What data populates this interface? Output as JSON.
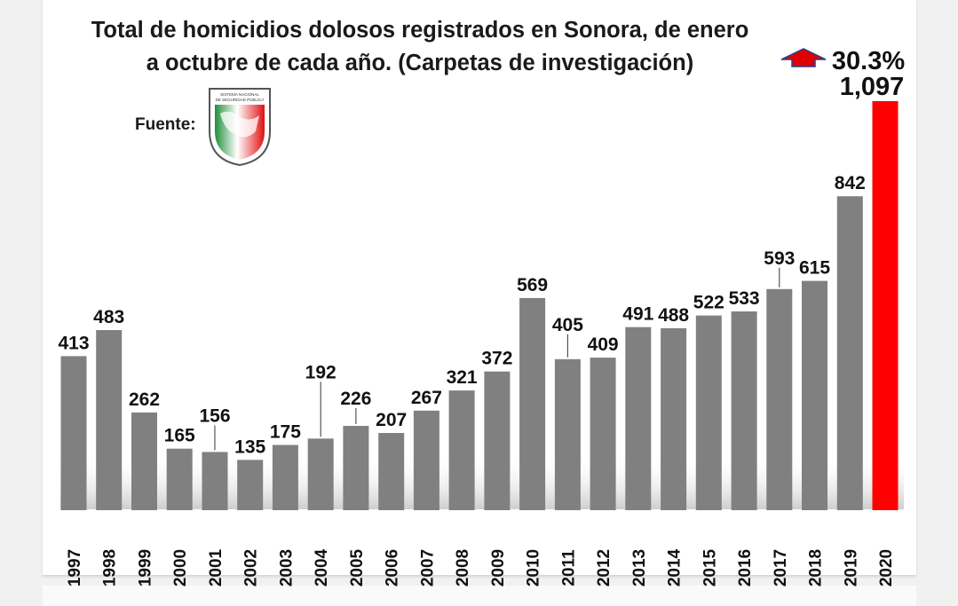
{
  "chart_data": {
    "type": "bar",
    "title_line1": "Total de homicidios dolosos registrados en Sonora, de enero",
    "title_line2": "a octubre de cada año. (Carpetas de investigación)",
    "source_label": "Fuente:",
    "seal_text_line1": "SISTEMA NACIONAL",
    "seal_text_line2": "DE SEGURIDAD PÚBLICA",
    "change_label": "30.3%",
    "categories": [
      "1997",
      "1998",
      "1999",
      "2000",
      "2001",
      "2002",
      "2003",
      "2004",
      "2005",
      "2006",
      "2007",
      "2008",
      "2009",
      "2010",
      "2011",
      "2012",
      "2013",
      "2014",
      "2015",
      "2016",
      "2017",
      "2018",
      "2019",
      "2020"
    ],
    "values": [
      413,
      483,
      262,
      165,
      156,
      135,
      175,
      192,
      226,
      207,
      267,
      321,
      372,
      569,
      405,
      409,
      491,
      488,
      522,
      533,
      593,
      615,
      842,
      1097
    ],
    "value_labels": [
      "413",
      "483",
      "262",
      "165",
      "156",
      "135",
      "175",
      "192",
      "226",
      "207",
      "267",
      "321",
      "372",
      "569",
      "405",
      "409",
      "491",
      "488",
      "522",
      "533",
      "593",
      "615",
      "842",
      "1,097"
    ],
    "ylim": [
      0,
      1097
    ],
    "grid": false,
    "colors": {
      "bar": "#808080",
      "highlight_bar": "#ff0000",
      "arrow": "#e00000",
      "title": "#1a1a1a"
    }
  }
}
